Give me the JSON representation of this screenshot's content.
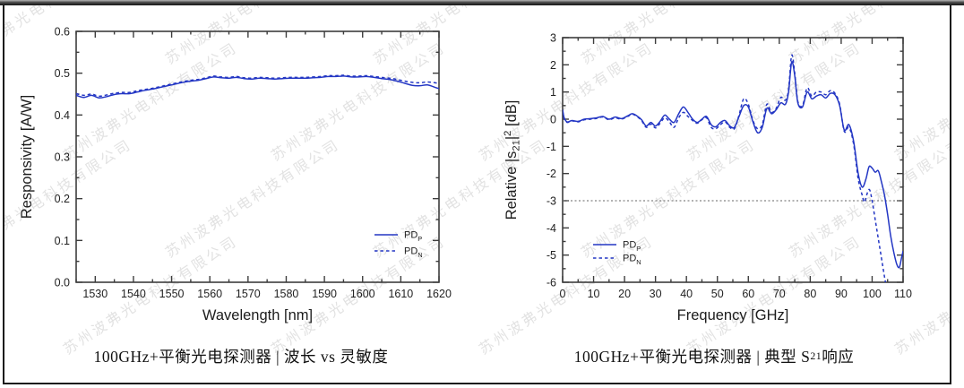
{
  "watermark": {
    "text": "苏州波弗光电科技有限公司"
  },
  "colors": {
    "curve_blue": "#2336c4",
    "axis": "#3d3d3d",
    "tick_label": "#222222",
    "ref_line": "#666666",
    "watermark": "#d9d9d9",
    "caption_text": "#111111"
  },
  "chart_data": [
    {
      "type": "line",
      "title": "",
      "xlabel": "Wavelength  [nm]",
      "ylabel_segments": [
        {
          "t": "Responsivity  [A/W]"
        }
      ],
      "xlim": [
        1525,
        1620
      ],
      "ylim": [
        0.0,
        0.6
      ],
      "x_major": 10,
      "x_minor": 5,
      "y_major": 0.1,
      "y_minor": 0.05,
      "x_decimals": 0,
      "y_decimals": 1,
      "grid": false,
      "legend_position": "right-bottom",
      "legend": [
        {
          "base": "PD",
          "sub": "P",
          "style": "solid"
        },
        {
          "base": "PD",
          "sub": "N",
          "style": "dashed"
        }
      ],
      "series": [
        {
          "name": "PD_P",
          "style": "solid",
          "x": [
            1525,
            1527,
            1529,
            1531,
            1533,
            1535,
            1537,
            1539,
            1541,
            1543,
            1545,
            1547,
            1549,
            1551,
            1553,
            1555,
            1557,
            1559,
            1561,
            1563,
            1565,
            1567,
            1569,
            1571,
            1573,
            1575,
            1577,
            1579,
            1581,
            1583,
            1585,
            1587,
            1589,
            1591,
            1593,
            1595,
            1597,
            1599,
            1601,
            1603,
            1605,
            1607,
            1609,
            1611,
            1613,
            1615,
            1617,
            1619,
            1620
          ],
          "y": [
            0.447,
            0.442,
            0.447,
            0.441,
            0.444,
            0.449,
            0.451,
            0.451,
            0.455,
            0.459,
            0.462,
            0.466,
            0.47,
            0.474,
            0.478,
            0.481,
            0.483,
            0.487,
            0.491,
            0.489,
            0.488,
            0.49,
            0.487,
            0.486,
            0.488,
            0.487,
            0.486,
            0.487,
            0.488,
            0.488,
            0.488,
            0.489,
            0.49,
            0.492,
            0.492,
            0.493,
            0.491,
            0.491,
            0.492,
            0.49,
            0.487,
            0.485,
            0.481,
            0.476,
            0.471,
            0.47,
            0.472,
            0.466,
            0.463
          ]
        },
        {
          "name": "PD_N",
          "style": "dashed",
          "x": [
            1525,
            1527,
            1529,
            1531,
            1533,
            1535,
            1537,
            1539,
            1541,
            1543,
            1545,
            1547,
            1549,
            1551,
            1553,
            1555,
            1557,
            1559,
            1561,
            1563,
            1565,
            1567,
            1569,
            1571,
            1573,
            1575,
            1577,
            1579,
            1581,
            1583,
            1585,
            1587,
            1589,
            1591,
            1593,
            1595,
            1597,
            1599,
            1601,
            1603,
            1605,
            1607,
            1609,
            1611,
            1613,
            1615,
            1617,
            1619,
            1620
          ],
          "y": [
            0.451,
            0.447,
            0.45,
            0.445,
            0.448,
            0.452,
            0.454,
            0.454,
            0.458,
            0.461,
            0.464,
            0.468,
            0.472,
            0.476,
            0.48,
            0.483,
            0.485,
            0.489,
            0.493,
            0.491,
            0.49,
            0.492,
            0.489,
            0.488,
            0.49,
            0.489,
            0.488,
            0.489,
            0.49,
            0.49,
            0.49,
            0.491,
            0.492,
            0.494,
            0.494,
            0.495,
            0.493,
            0.493,
            0.494,
            0.492,
            0.49,
            0.488,
            0.485,
            0.481,
            0.478,
            0.477,
            0.479,
            0.477,
            0.475
          ]
        }
      ],
      "caption_segments": [
        {
          "t": "100GHz+平衡光电探测器 | 波长 vs 灵敏度"
        }
      ]
    },
    {
      "type": "line",
      "title": "",
      "xlabel": "Frequency  [GHz]",
      "ylabel_segments": [
        {
          "t": "Relative |s"
        },
        {
          "t": "21",
          "sub": true
        },
        {
          "t": "|"
        },
        {
          "t": "2",
          "sup": true
        },
        {
          "t": "  [dB]"
        }
      ],
      "xlim": [
        0,
        110
      ],
      "ylim": [
        -6,
        3
      ],
      "x_major": 10,
      "x_minor": 5,
      "y_major": 1,
      "y_minor": 0.5,
      "x_decimals": 0,
      "y_decimals": 0,
      "grid": false,
      "ref_line_y": -3,
      "legend_position": "left-bottom",
      "legend": [
        {
          "base": "PD",
          "sub": "P",
          "style": "solid"
        },
        {
          "base": "PD",
          "sub": "N",
          "style": "dashed"
        }
      ],
      "series": [
        {
          "name": "PD_P",
          "style": "solid",
          "x": [
            0,
            0.5,
            1.5,
            3,
            5,
            7,
            9,
            11,
            13,
            15,
            17,
            19,
            21,
            22.5,
            24,
            25.5,
            27,
            28.5,
            30,
            31.5,
            33,
            34.5,
            36,
            37.5,
            39,
            40.5,
            42,
            43.5,
            45,
            46.5,
            48,
            49.5,
            51,
            52.5,
            54,
            55.5,
            57,
            58.5,
            60,
            61.5,
            63,
            64.5,
            66,
            67.5,
            69,
            70.5,
            72,
            73,
            74,
            75,
            76,
            77.5,
            79,
            80.5,
            82,
            83.5,
            85,
            86.5,
            88,
            89.5,
            91,
            92.5,
            94,
            95.5,
            96.8,
            98,
            99,
            100,
            101,
            102,
            103,
            104,
            105,
            106,
            107,
            108,
            108.8,
            109.5,
            110
          ],
          "y": [
            0.35,
            0.05,
            -0.1,
            -0.05,
            -0.08,
            0,
            0.02,
            0.05,
            0.1,
            0,
            0.08,
            0.02,
            0.12,
            0.2,
            0.12,
            -0.02,
            -0.25,
            -0.12,
            -0.25,
            -0.08,
            0.15,
            0,
            -0.12,
            0.2,
            0.45,
            0.25,
            0,
            -0.12,
            0,
            0.1,
            -0.2,
            -0.28,
            -0.12,
            -0.05,
            -0.25,
            -0.3,
            0.1,
            0.5,
            0.45,
            -0.1,
            -0.5,
            -0.3,
            0.4,
            0.2,
            0.35,
            0.6,
            0.55,
            1.0,
            2.1,
            1.6,
            0.6,
            0.45,
            1.0,
            0.75,
            0.85,
            0.9,
            0.78,
            0.95,
            0.9,
            0.5,
            -0.4,
            -0.2,
            -0.8,
            -2.0,
            -2.5,
            -2.2,
            -1.75,
            -1.8,
            -1.95,
            -1.9,
            -2.3,
            -2.8,
            -3.5,
            -4.3,
            -4.9,
            -5.35,
            -5.45,
            -5.1,
            -4.85
          ]
        },
        {
          "name": "PD_N",
          "style": "dashed",
          "x": [
            0,
            0.5,
            1.5,
            3,
            5,
            7,
            9,
            11,
            13,
            15,
            17,
            19,
            21,
            22.5,
            24,
            25.5,
            27,
            28.5,
            30,
            31.5,
            33,
            34.5,
            36,
            37.5,
            39,
            40.5,
            42,
            43.5,
            45,
            46.5,
            48,
            49.5,
            51,
            52.5,
            54,
            55.5,
            57,
            58.5,
            60,
            61.5,
            63,
            64.5,
            66,
            67.5,
            69,
            70.5,
            72,
            73,
            74,
            75,
            76,
            77.5,
            79,
            80.5,
            82,
            83.5,
            85,
            86.5,
            88,
            89.5,
            91,
            92.5,
            94,
            95.5,
            96.8,
            97.5,
            98.5,
            99.2,
            100,
            101,
            102,
            103,
            104,
            105,
            105.8
          ],
          "y": [
            0.3,
            0.02,
            -0.12,
            -0.06,
            -0.1,
            -0.02,
            0,
            0.03,
            0.08,
            -0.02,
            0.05,
            0,
            0.1,
            0.18,
            0.1,
            -0.05,
            -0.3,
            -0.18,
            -0.32,
            -0.15,
            0.05,
            -0.1,
            -0.3,
            0.05,
            0.25,
            0.1,
            -0.05,
            -0.15,
            -0.02,
            0.05,
            -0.3,
            -0.35,
            -0.2,
            -0.1,
            -0.3,
            -0.35,
            0.15,
            0.75,
            0.55,
            -0.05,
            -0.35,
            -0.2,
            0.55,
            0.25,
            0.4,
            0.8,
            0.7,
            1.1,
            2.35,
            1.7,
            0.65,
            0.5,
            1.15,
            0.85,
            1.0,
            1.0,
            0.9,
            1.05,
            0.95,
            0.55,
            -0.45,
            -0.3,
            -0.9,
            -2.2,
            -2.8,
            -3.05,
            -2.7,
            -2.6,
            -3.0,
            -3.7,
            -4.4,
            -5.1,
            -5.8,
            -6.4,
            -6.9
          ]
        }
      ],
      "caption_segments": [
        {
          "t": "100GHz+平衡光电探测器 | 典型 S"
        },
        {
          "t": "21",
          "sub": true
        },
        {
          "t": " 响应"
        }
      ]
    }
  ]
}
